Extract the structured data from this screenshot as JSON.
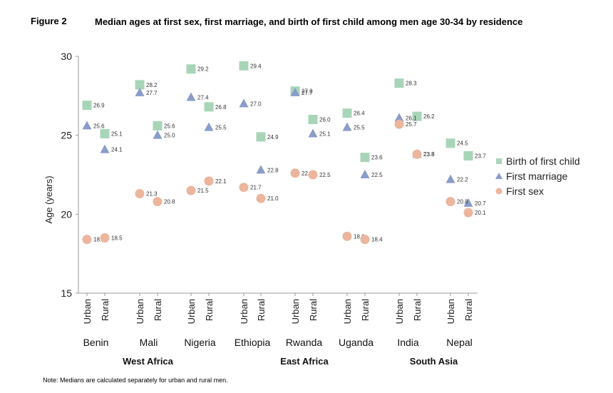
{
  "figure": {
    "label": "Figure 2",
    "title": "Median ages at first sex, first marriage, and birth of first child among men age 30-34 by residence",
    "note": "Note: Medians are calculated separately for urban and rural men."
  },
  "chart_data": {
    "type": "scatter",
    "ylabel": "Age (years)",
    "ylim": [
      15,
      30
    ],
    "yticks": [
      15,
      20,
      25,
      30
    ],
    "legend_position": "right",
    "colors": {
      "Birth of first child": "#a8d5b8",
      "First marriage": "#8a9cc9",
      "First sex": "#ecb59d"
    },
    "countries": [
      {
        "name": "Benin",
        "region": "West Africa"
      },
      {
        "name": "Mali",
        "region": "West Africa"
      },
      {
        "name": "Nigeria",
        "region": "West Africa"
      },
      {
        "name": "Ethiopia",
        "region": "East Africa"
      },
      {
        "name": "Rwanda",
        "region": "East Africa"
      },
      {
        "name": "Uganda",
        "region": "East Africa"
      },
      {
        "name": "India",
        "region": "South Asia"
      },
      {
        "name": "Nepal",
        "region": "South Asia"
      }
    ],
    "residence": [
      "Urban",
      "Rural"
    ],
    "regions": [
      {
        "name": "West Africa",
        "countries": [
          "Benin",
          "Mali",
          "Nigeria"
        ]
      },
      {
        "name": "East Africa",
        "countries": [
          "Ethiopia",
          "Rwanda",
          "Uganda"
        ]
      },
      {
        "name": "South Asia",
        "countries": [
          "India",
          "Nepal"
        ]
      }
    ],
    "series": [
      {
        "name": "Birth of first child",
        "marker": "square",
        "values": [
          26.9,
          25.1,
          28.2,
          25.6,
          29.2,
          26.8,
          29.4,
          24.9,
          27.8,
          26.0,
          26.4,
          23.6,
          28.3,
          26.2,
          24.5,
          23.7
        ]
      },
      {
        "name": "First marriage",
        "marker": "triangle",
        "values": [
          25.6,
          24.1,
          27.7,
          25.0,
          27.4,
          25.5,
          27.0,
          22.8,
          27.7,
          25.1,
          25.5,
          22.5,
          26.1,
          23.8,
          22.2,
          20.7
        ]
      },
      {
        "name": "First sex",
        "marker": "circle",
        "values": [
          18.4,
          18.5,
          21.3,
          20.8,
          21.5,
          22.1,
          21.7,
          21.0,
          22.6,
          22.5,
          18.6,
          18.4,
          25.7,
          23.8,
          20.8,
          20.1
        ]
      }
    ],
    "data_labels": {
      "Birth of first child": [
        "26.9",
        "25.1",
        "28.2",
        "25.6",
        "29.2",
        "26.8",
        "29.4",
        "24.9",
        "27.8",
        "26.0",
        "26.4",
        "23.6",
        "28.3",
        "26.2",
        "24.5",
        "23.7"
      ],
      "First marriage": [
        "25.6",
        "24.1",
        "27.7",
        "25.0",
        "27.4",
        "25.5",
        "27.0",
        "22.8",
        "27.7",
        "25.1",
        "25.5",
        "22.5",
        "26.1",
        "23.8",
        "22.2",
        "20.7"
      ],
      "First sex": [
        "18.4",
        "18.5",
        "21.3",
        "20.8",
        "21.5",
        "22.1",
        "21.7",
        "21.0",
        "22.6",
        "22.5",
        "18.6",
        "18.4",
        "25.7",
        "23.8",
        "20.8",
        "20.1"
      ]
    }
  }
}
